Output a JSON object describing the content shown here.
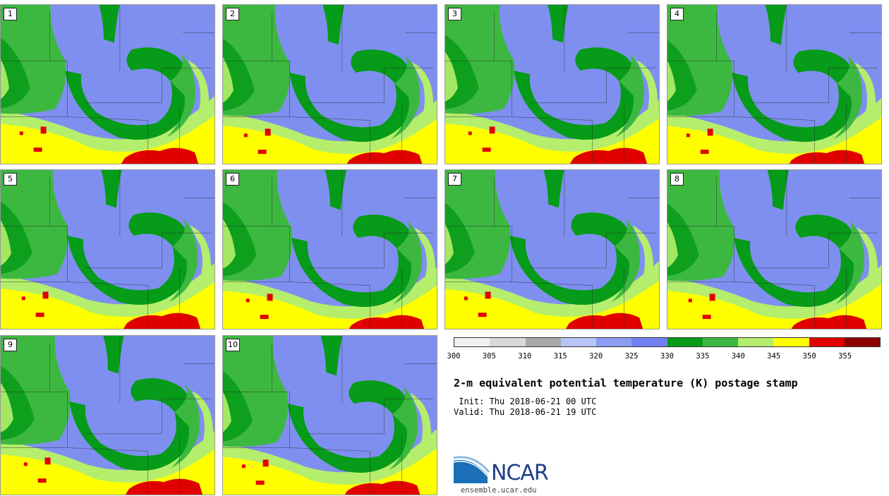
{
  "stamps": [
    {
      "label": "1"
    },
    {
      "label": "2"
    },
    {
      "label": "3"
    },
    {
      "label": "4"
    },
    {
      "label": "5"
    },
    {
      "label": "6"
    },
    {
      "label": "7"
    },
    {
      "label": "8"
    },
    {
      "label": "9"
    },
    {
      "label": "10"
    }
  ],
  "colorbar": {
    "colors": [
      "#f0f0f0",
      "#d8d8d8",
      "#a8a8a8",
      "#b8c4f8",
      "#8c9cf0",
      "#7080ee",
      "#069b18",
      "#3cb840",
      "#b4ee6c",
      "#ffff00",
      "#e00000",
      "#8c0000"
    ],
    "ticks": [
      "300",
      "305",
      "310",
      "315",
      "320",
      "325",
      "330",
      "335",
      "340",
      "345",
      "350",
      "355"
    ]
  },
  "title": "2-m equivalent potential temperature (K) postage stamp",
  "init_line": " Init: Thu 2018-06-21 00 UTC",
  "valid_line": "Valid: Thu 2018-06-21 19 UTC",
  "logo_text": "NCAR",
  "url": "ensemble.ucar.edu"
}
